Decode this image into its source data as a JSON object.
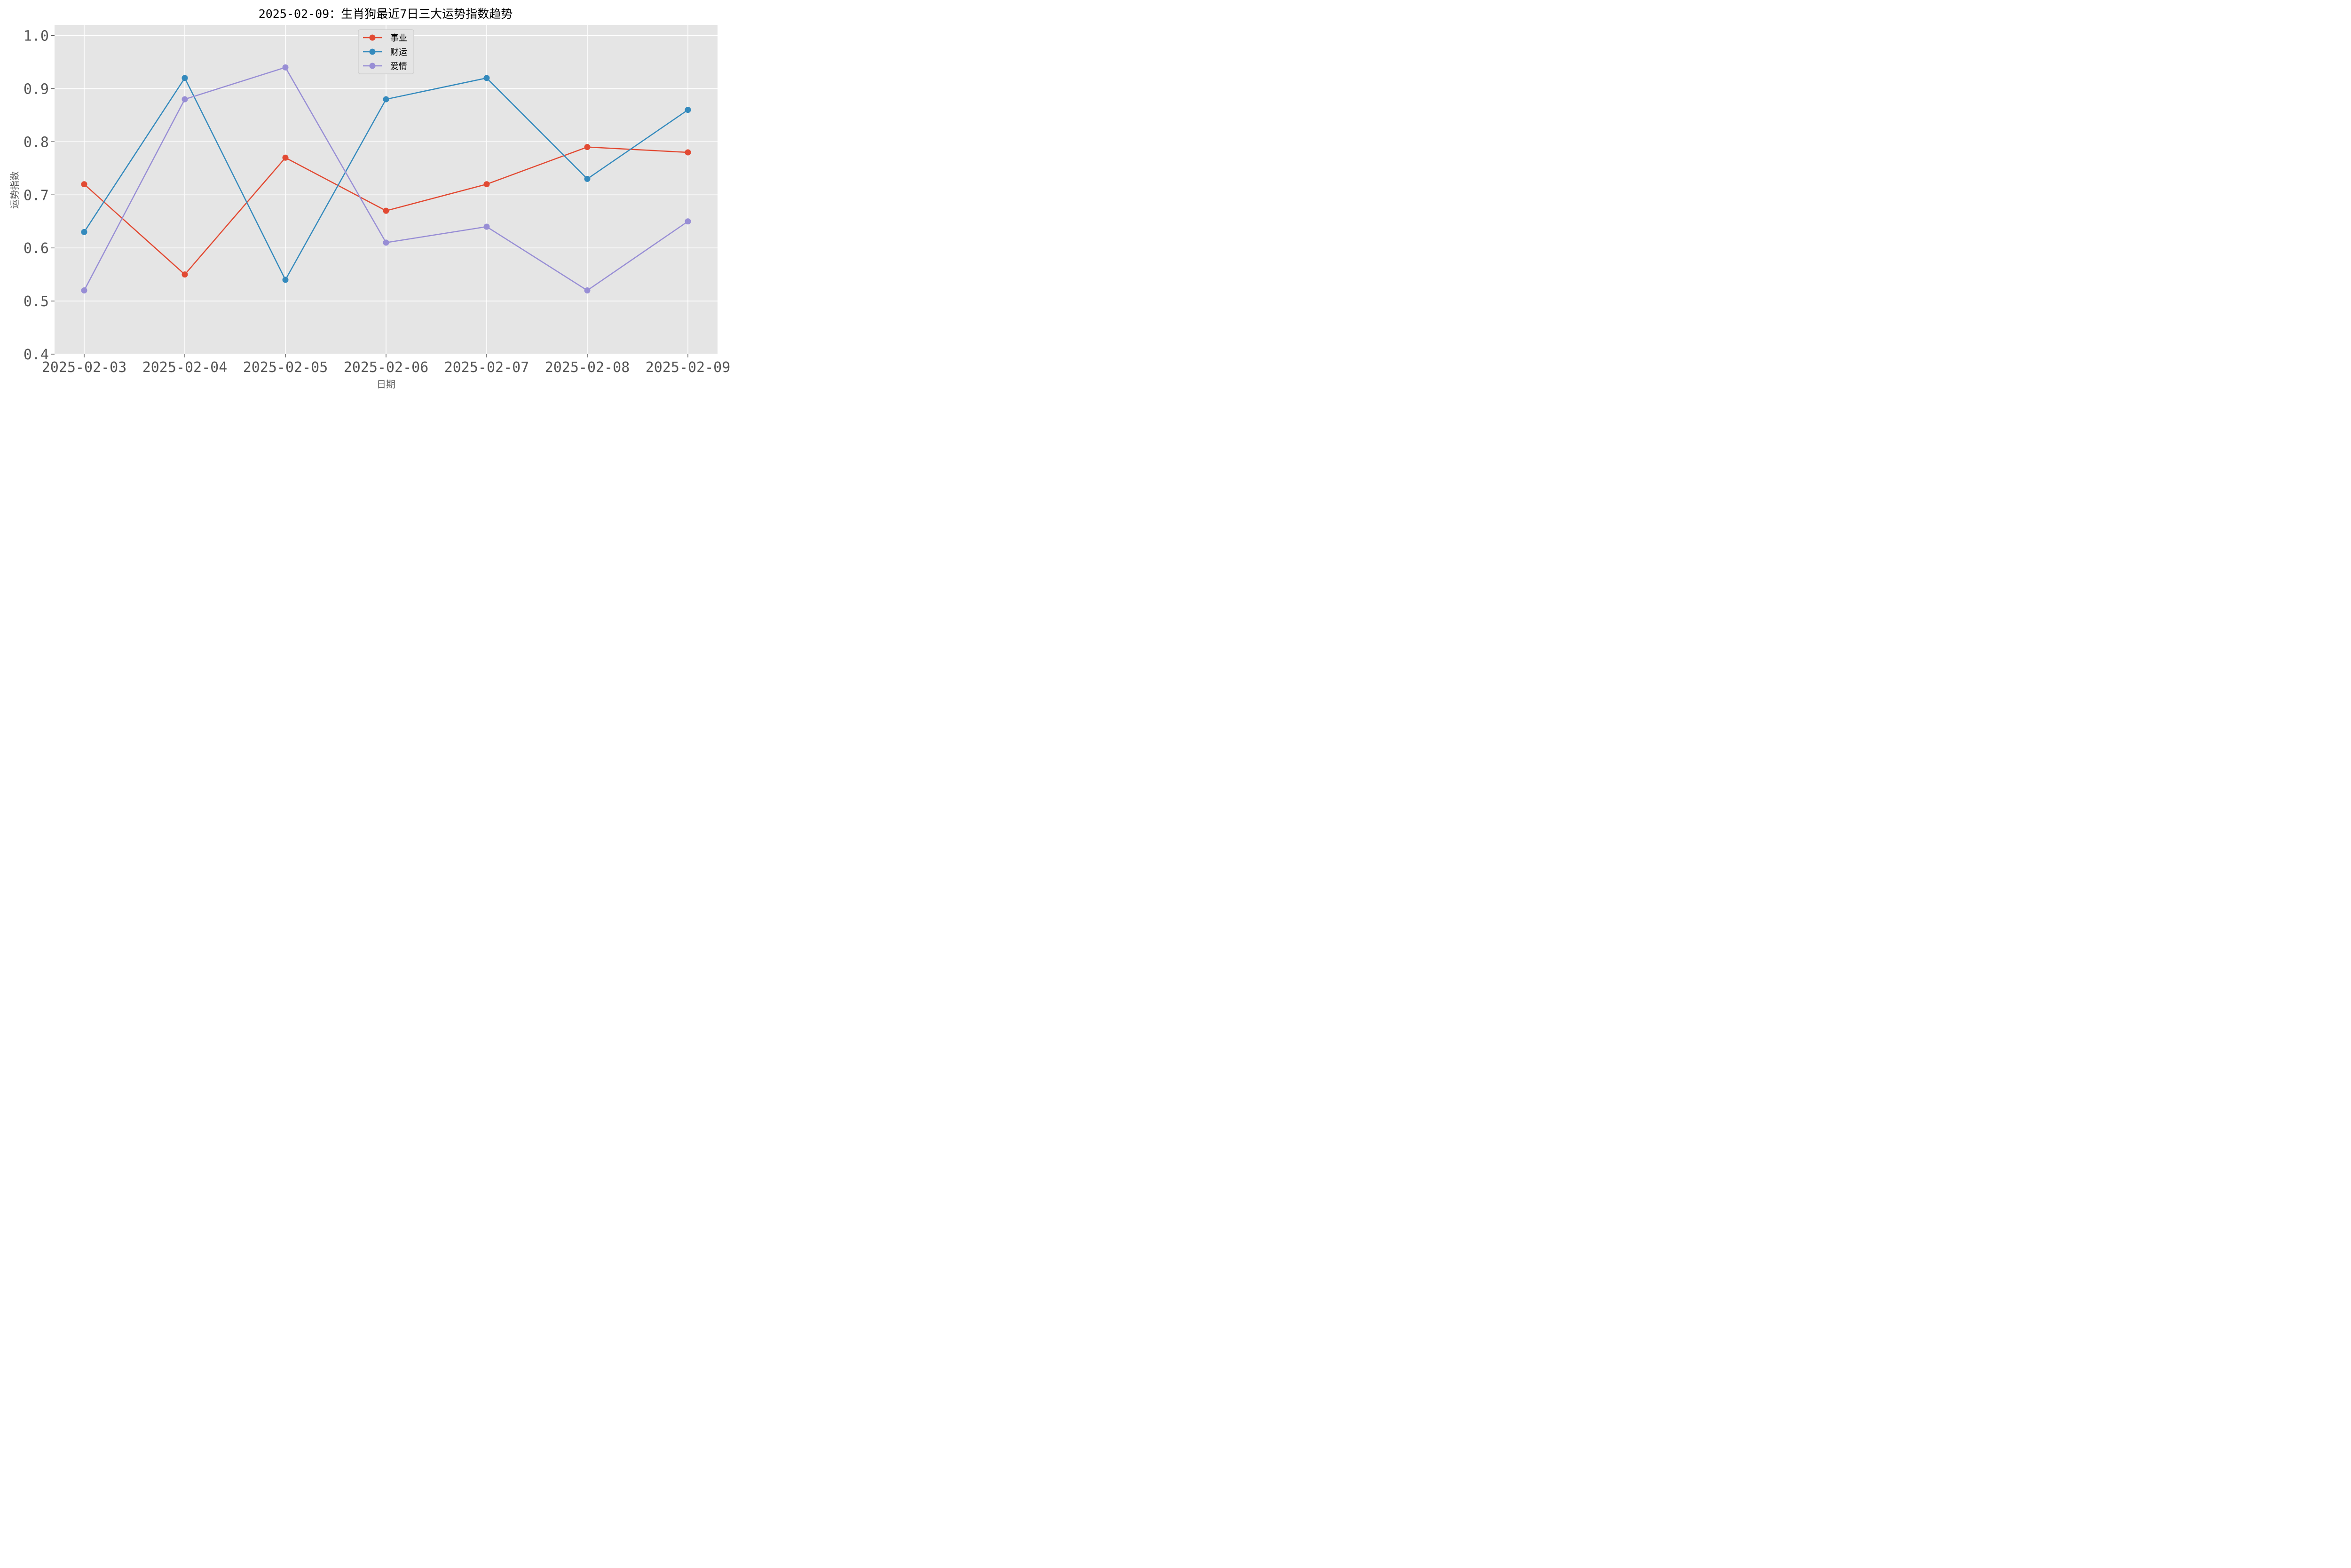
{
  "chart_data": {
    "type": "line",
    "title": "2025-02-09：生肖狗最近7日三大运势指数趋势",
    "xlabel": "日期",
    "ylabel": "运势指数",
    "categories": [
      "2025-02-03",
      "2025-02-04",
      "2025-02-05",
      "2025-02-06",
      "2025-02-07",
      "2025-02-08",
      "2025-02-09"
    ],
    "ylim": [
      0.4,
      1.02
    ],
    "yticks": [
      0.4,
      0.5,
      0.6,
      0.7,
      0.8,
      0.9,
      1.0
    ],
    "ytick_labels": [
      "0.4",
      "0.5",
      "0.6",
      "0.7",
      "0.8",
      "0.9",
      "1.0"
    ],
    "grid": true,
    "legend_position": "top-center",
    "series": [
      {
        "name": "事业",
        "color": "#E24A33",
        "values": [
          0.72,
          0.55,
          0.77,
          0.67,
          0.72,
          0.79,
          0.78
        ]
      },
      {
        "name": "财运",
        "color": "#348ABD",
        "values": [
          0.63,
          0.92,
          0.54,
          0.88,
          0.92,
          0.73,
          0.86
        ]
      },
      {
        "name": "爱情",
        "color": "#988ED5",
        "values": [
          0.52,
          0.88,
          0.94,
          0.61,
          0.64,
          0.52,
          0.65
        ]
      }
    ]
  }
}
